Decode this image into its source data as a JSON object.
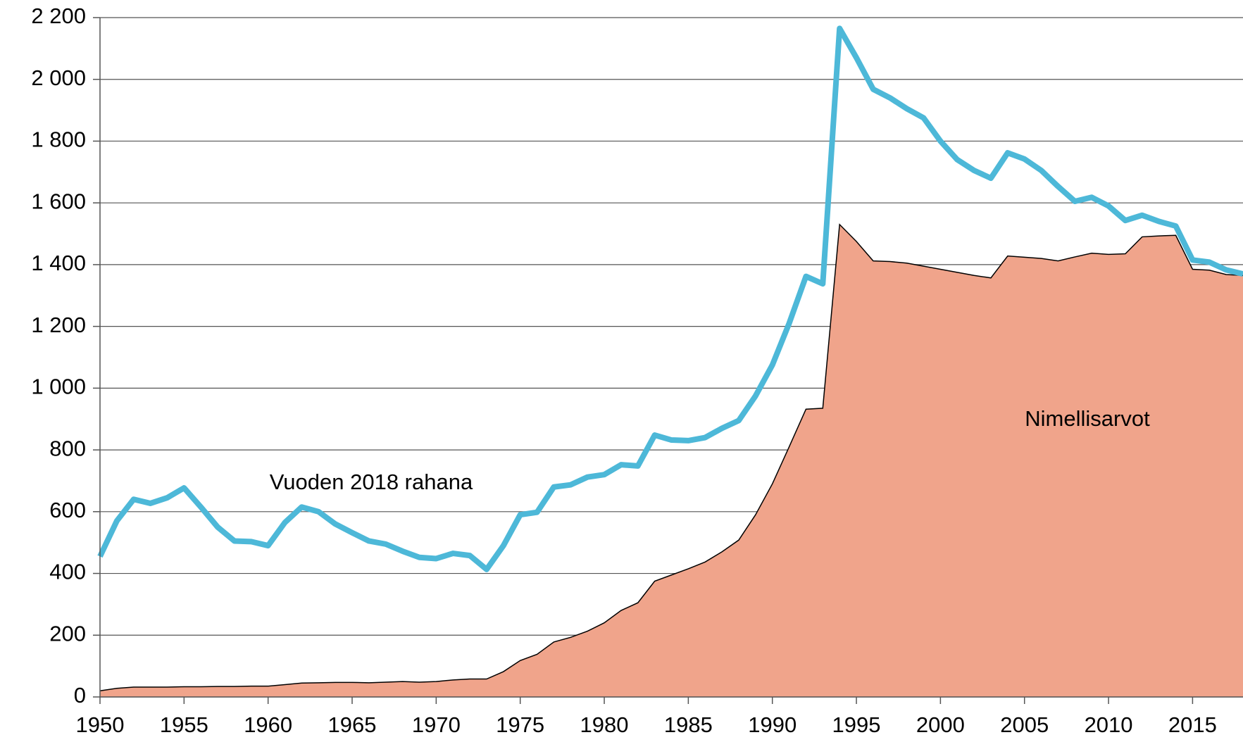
{
  "chart_data": {
    "type": "line-area",
    "x": [
      1950,
      1951,
      1952,
      1953,
      1954,
      1955,
      1956,
      1957,
      1958,
      1959,
      1960,
      1961,
      1962,
      1963,
      1964,
      1965,
      1966,
      1967,
      1968,
      1969,
      1970,
      1971,
      1972,
      1973,
      1974,
      1975,
      1976,
      1977,
      1978,
      1979,
      1980,
      1981,
      1982,
      1983,
      1984,
      1985,
      1986,
      1987,
      1988,
      1989,
      1990,
      1991,
      1992,
      1993,
      1994,
      1995,
      1996,
      1997,
      1998,
      1999,
      2000,
      2001,
      2002,
      2003,
      2004,
      2005,
      2006,
      2007,
      2008,
      2009,
      2010,
      2011,
      2012,
      2013,
      2014,
      2015,
      2016,
      2017,
      2018
    ],
    "series": [
      {
        "name": "Nimellisarvot",
        "kind": "area",
        "color": "#f0a48b",
        "values": [
          20,
          28,
          32,
          32,
          32,
          33,
          33,
          34,
          34,
          35,
          35,
          40,
          45,
          46,
          47,
          47,
          46,
          48,
          50,
          48,
          50,
          55,
          58,
          58,
          82,
          118,
          138,
          178,
          193,
          213,
          240,
          280,
          305,
          375,
          395,
          415,
          437,
          470,
          508,
          590,
          690,
          810,
          932,
          935,
          1530,
          1475,
          1412,
          1410,
          1405,
          1395,
          1385,
          1375,
          1365,
          1357,
          1428,
          1424,
          1420,
          1412,
          1425,
          1437,
          1433,
          1435,
          1490,
          1493,
          1495,
          1385,
          1382,
          1368,
          1365
        ]
      },
      {
        "name": "Vuoden 2018 rahana",
        "kind": "line",
        "color": "#4db8d8",
        "values": [
          455,
          570,
          640,
          627,
          645,
          677,
          615,
          550,
          505,
          503,
          490,
          565,
          615,
          600,
          560,
          532,
          505,
          495,
          472,
          452,
          448,
          465,
          458,
          413,
          490,
          590,
          598,
          680,
          687,
          712,
          720,
          752,
          748,
          848,
          832,
          830,
          840,
          870,
          895,
          975,
          1075,
          1210,
          1362,
          1338,
          2165,
          2070,
          1968,
          1940,
          1905,
          1875,
          1800,
          1740,
          1705,
          1680,
          1762,
          1742,
          1705,
          1653,
          1605,
          1618,
          1590,
          1543,
          1560,
          1540,
          1525,
          1415,
          1408,
          1383,
          1370
        ]
      }
    ],
    "xlim": [
      1950,
      2018
    ],
    "xticks": [
      1950,
      1955,
      1960,
      1965,
      1970,
      1975,
      1980,
      1985,
      1990,
      1995,
      2000,
      2005,
      2010,
      2015
    ],
    "ylim": [
      0,
      2200
    ],
    "yticks": [
      0,
      200,
      400,
      600,
      800,
      {
        "value": 1000,
        "label": "1 000"
      },
      {
        "value": 1200,
        "label": "1 200"
      },
      {
        "value": 1400,
        "label": "1 400"
      },
      {
        "value": 1600,
        "label": "1 600"
      },
      {
        "value": 1800,
        "label": "1 800"
      },
      {
        "value": 2000,
        "label": "2 000"
      },
      {
        "value": 2200,
        "label": "2 200"
      }
    ],
    "grid": true
  }
}
